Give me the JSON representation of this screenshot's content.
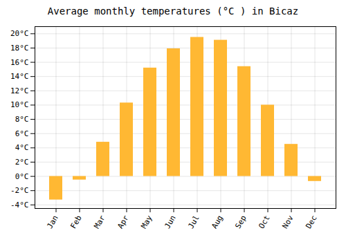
{
  "chart_data": {
    "type": "bar",
    "title": "Average monthly temperatures (°C ) in Bicaz",
    "categories": [
      "Jan",
      "Feb",
      "Mar",
      "Apr",
      "May",
      "Jun",
      "Jul",
      "Aug",
      "Sep",
      "Oct",
      "Nov",
      "Dec"
    ],
    "values": [
      -3.3,
      -0.5,
      4.8,
      10.3,
      15.2,
      17.9,
      19.5,
      19.1,
      15.4,
      10.0,
      4.5,
      -0.7
    ],
    "color": "#FFB833",
    "ylim": [
      -4.5,
      21
    ],
    "yticks": [
      {
        "value": -4,
        "label": "-4°C"
      },
      {
        "value": -2,
        "label": "-2°C"
      },
      {
        "value": 0,
        "label": "0°C"
      },
      {
        "value": 2,
        "label": "2°C"
      },
      {
        "value": 4,
        "label": "4°C"
      },
      {
        "value": 6,
        "label": "6°C"
      },
      {
        "value": 8,
        "label": "8°C"
      },
      {
        "value": 10,
        "label": "10°C"
      },
      {
        "value": 12,
        "label": "12°C"
      },
      {
        "value": 14,
        "label": "14°C"
      },
      {
        "value": 16,
        "label": "16°C"
      },
      {
        "value": 18,
        "label": "18°C"
      },
      {
        "value": 20,
        "label": "20°C"
      }
    ],
    "grid": true
  }
}
